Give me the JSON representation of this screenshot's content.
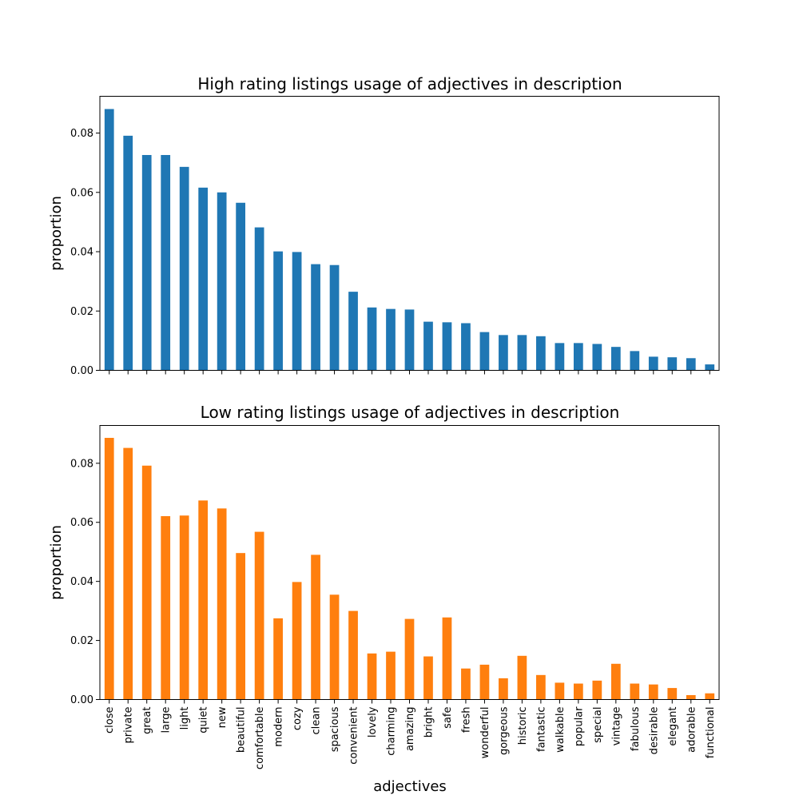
{
  "chart_data": [
    {
      "type": "bar",
      "title": "High rating listings usage of adjectives in description",
      "ylabel": "proportion",
      "xlabel": "",
      "color": "#1f77b4",
      "ylim": [
        0,
        0.0924
      ],
      "yticks": [
        "0.00",
        "0.02",
        "0.04",
        "0.06",
        "0.08"
      ],
      "categories": [
        "close",
        "private",
        "great",
        "large",
        "light",
        "quiet",
        "new",
        "beautiful",
        "comfortable",
        "modern",
        "cozy",
        "clean",
        "spacious",
        "convenient",
        "lovely",
        "charming",
        "amazing",
        "bright",
        "safe",
        "fresh",
        "wonderful",
        "gorgeous",
        "historic",
        "fantastic",
        "walkable",
        "popular",
        "special",
        "vintage",
        "fabulous",
        "desirable",
        "elegant",
        "adorable",
        "functional"
      ],
      "values": [
        0.0881,
        0.0791,
        0.0726,
        0.0726,
        0.0686,
        0.0616,
        0.06,
        0.0565,
        0.0482,
        0.0401,
        0.0399,
        0.0358,
        0.0355,
        0.0265,
        0.0212,
        0.0207,
        0.0205,
        0.0164,
        0.0162,
        0.0159,
        0.0129,
        0.0119,
        0.0119,
        0.0115,
        0.0092,
        0.0092,
        0.0089,
        0.0079,
        0.0065,
        0.0046,
        0.0044,
        0.0041,
        0.002
      ]
    },
    {
      "type": "bar",
      "title": "Low rating listings usage of adjectives in description",
      "ylabel": "proportion",
      "xlabel": "adjectives",
      "color": "#ff7f0e",
      "ylim": [
        0,
        0.0928
      ],
      "yticks": [
        "0.00",
        "0.02",
        "0.04",
        "0.06",
        "0.08"
      ],
      "categories": [
        "close",
        "private",
        "great",
        "large",
        "light",
        "quiet",
        "new",
        "beautiful",
        "comfortable",
        "modern",
        "cozy",
        "clean",
        "spacious",
        "convenient",
        "lovely",
        "charming",
        "amazing",
        "bright",
        "safe",
        "fresh",
        "wonderful",
        "gorgeous",
        "historic",
        "fantastic",
        "walkable",
        "popular",
        "special",
        "vintage",
        "fabulous",
        "desirable",
        "elegant",
        "adorable",
        "functional"
      ],
      "values": [
        0.0886,
        0.0852,
        0.0792,
        0.0621,
        0.0623,
        0.0674,
        0.0647,
        0.0496,
        0.0568,
        0.0275,
        0.0398,
        0.049,
        0.0355,
        0.03,
        0.0156,
        0.0162,
        0.0273,
        0.0146,
        0.0278,
        0.0105,
        0.0118,
        0.0072,
        0.0148,
        0.0083,
        0.0057,
        0.0054,
        0.0064,
        0.0121,
        0.0054,
        0.0051,
        0.0039,
        0.0015,
        0.0021
      ]
    }
  ]
}
